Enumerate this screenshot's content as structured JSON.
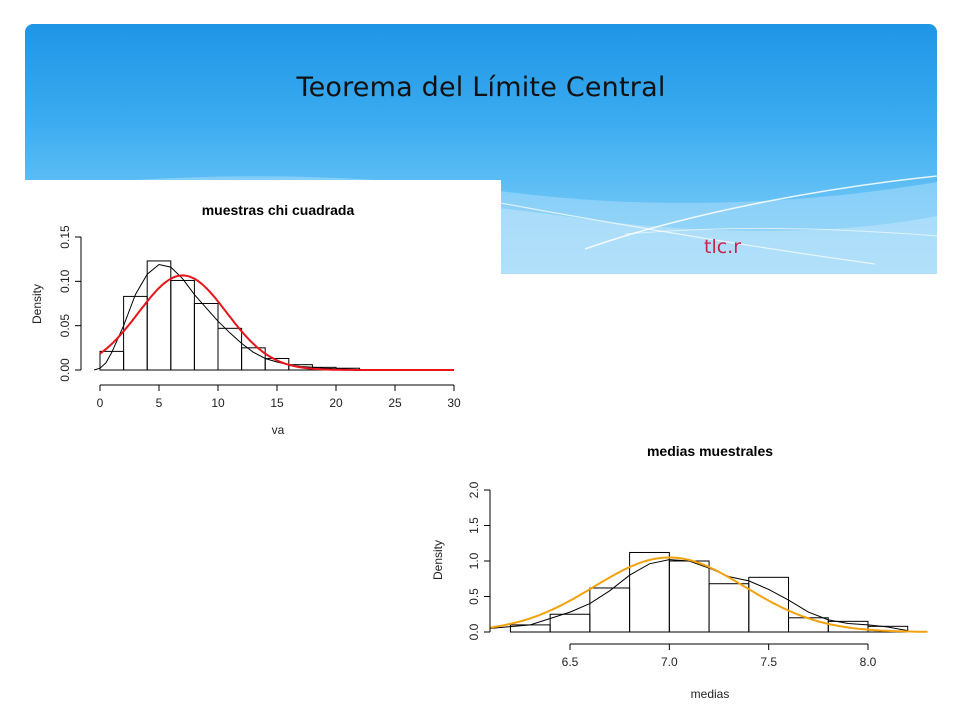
{
  "slide": {
    "title": "Teorema del Límite Central",
    "file_label": "tlc.r",
    "colors": {
      "header_top": "#1f95e6",
      "header_bottom": "#8fd3fa",
      "file_label": "#c8244d"
    }
  },
  "chart_data": [
    {
      "type": "bar",
      "title": "muestras chi cuadrada",
      "xlabel": "va",
      "ylabel": "Density",
      "xlim": [
        0,
        30
      ],
      "ylim": [
        0,
        0.15
      ],
      "xticks": [
        0,
        5,
        10,
        15,
        20,
        25,
        30
      ],
      "yticks": [
        0.0,
        0.05,
        0.1,
        0.15
      ],
      "ytick_labels": [
        "0.00",
        "0.05",
        "0.10",
        "0.15"
      ],
      "bins": [
        {
          "x0": 0,
          "x1": 2,
          "density": 0.021
        },
        {
          "x0": 2,
          "x1": 4,
          "density": 0.083
        },
        {
          "x0": 4,
          "x1": 6,
          "density": 0.123
        },
        {
          "x0": 6,
          "x1": 8,
          "density": 0.101
        },
        {
          "x0": 8,
          "x1": 10,
          "density": 0.075
        },
        {
          "x0": 10,
          "x1": 12,
          "density": 0.047
        },
        {
          "x0": 12,
          "x1": 14,
          "density": 0.025
        },
        {
          "x0": 14,
          "x1": 16,
          "density": 0.013
        },
        {
          "x0": 16,
          "x1": 18,
          "density": 0.006
        },
        {
          "x0": 18,
          "x1": 20,
          "density": 0.003
        },
        {
          "x0": 20,
          "x1": 22,
          "density": 0.002
        }
      ],
      "density_curve": [
        [
          -0.5,
          0
        ],
        [
          0,
          0.002
        ],
        [
          0.5,
          0.008
        ],
        [
          1,
          0.02
        ],
        [
          2,
          0.05
        ],
        [
          3,
          0.085
        ],
        [
          4,
          0.108
        ],
        [
          5,
          0.119
        ],
        [
          6,
          0.116
        ],
        [
          7,
          0.103
        ],
        [
          8,
          0.085
        ],
        [
          9,
          0.07
        ],
        [
          10,
          0.055
        ],
        [
          11,
          0.042
        ],
        [
          12,
          0.03
        ],
        [
          13,
          0.02
        ],
        [
          14,
          0.013
        ],
        [
          15,
          0.009
        ],
        [
          16,
          0.006
        ],
        [
          17,
          0.004
        ],
        [
          18,
          0.003
        ],
        [
          19,
          0.002
        ],
        [
          20,
          0.0015
        ],
        [
          21,
          0.001
        ],
        [
          22,
          0.0005
        ]
      ],
      "normal_fit": {
        "mean": 7,
        "sd": 3.74,
        "xrange": [
          0,
          30
        ],
        "color": "#e8141b"
      }
    },
    {
      "type": "bar",
      "title": "medias muestrales",
      "xlabel": "medias",
      "ylabel": "Density",
      "xlim": [
        6.1,
        8.3
      ],
      "ylim": [
        0,
        2.0
      ],
      "xticks": [
        6.5,
        7.0,
        7.5,
        8.0
      ],
      "xtick_labels": [
        "6.5",
        "7.0",
        "7.5",
        "8.0"
      ],
      "yticks": [
        0.0,
        0.5,
        1.0,
        1.5,
        2.0
      ],
      "ytick_labels": [
        "0.0",
        "0.5",
        "1.0",
        "1.5",
        "2.0"
      ],
      "bins": [
        {
          "x0": 6.2,
          "x1": 6.4,
          "density": 0.1
        },
        {
          "x0": 6.4,
          "x1": 6.6,
          "density": 0.25
        },
        {
          "x0": 6.6,
          "x1": 6.8,
          "density": 0.62
        },
        {
          "x0": 6.8,
          "x1": 7.0,
          "density": 1.12
        },
        {
          "x0": 7.0,
          "x1": 7.2,
          "density": 1.0
        },
        {
          "x0": 7.2,
          "x1": 7.4,
          "density": 0.68
        },
        {
          "x0": 7.4,
          "x1": 7.6,
          "density": 0.77
        },
        {
          "x0": 7.6,
          "x1": 7.8,
          "density": 0.2
        },
        {
          "x0": 7.8,
          "x1": 8.0,
          "density": 0.15
        },
        {
          "x0": 8.0,
          "x1": 8.2,
          "density": 0.08
        }
      ],
      "density_curve": [
        [
          6.1,
          0.05
        ],
        [
          6.3,
          0.1
        ],
        [
          6.5,
          0.28
        ],
        [
          6.6,
          0.4
        ],
        [
          6.7,
          0.58
        ],
        [
          6.8,
          0.8
        ],
        [
          6.9,
          0.96
        ],
        [
          7.0,
          1.02
        ],
        [
          7.1,
          1.0
        ],
        [
          7.2,
          0.9
        ],
        [
          7.3,
          0.78
        ],
        [
          7.4,
          0.72
        ],
        [
          7.5,
          0.6
        ],
        [
          7.6,
          0.45
        ],
        [
          7.7,
          0.28
        ],
        [
          7.8,
          0.17
        ],
        [
          7.9,
          0.12
        ],
        [
          8.0,
          0.1
        ],
        [
          8.1,
          0.07
        ],
        [
          8.2,
          0.02
        ]
      ],
      "normal_fit": {
        "mean": 7.0,
        "sd": 0.38,
        "xrange": [
          6.1,
          8.3
        ],
        "color": "#f2a20c"
      }
    }
  ]
}
